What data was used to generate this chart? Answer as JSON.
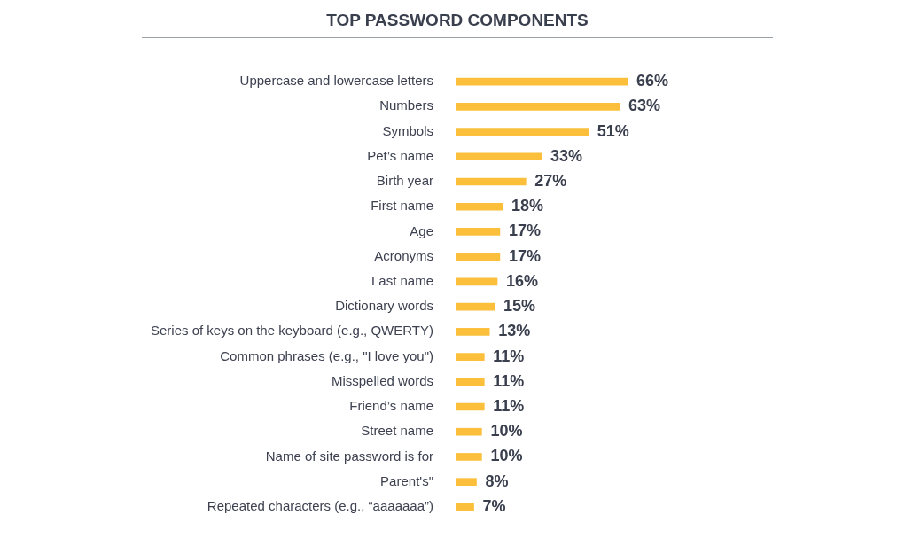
{
  "chart_data": {
    "type": "bar",
    "orientation": "horizontal",
    "title": "TOP PASSWORD COMPONENTS",
    "categories": [
      "Uppercase and lowercase letters",
      "Numbers",
      "Symbols",
      "Pet’s name",
      "Birth year",
      "First name",
      "Age",
      "Acronyms",
      "Last name",
      "Dictionary words",
      "Series of keys on the keyboard (e.g., QWERTY)",
      "Common phrases (e.g., \"I love you\")",
      "Misspelled words",
      "Friend’s name",
      "Street name",
      "Name of site password is for",
      "Parent's\"",
      "Repeated characters (e.g., “aaaaaaa”)"
    ],
    "values": [
      66,
      63,
      51,
      33,
      27,
      18,
      17,
      17,
      16,
      15,
      13,
      11,
      11,
      11,
      10,
      10,
      8,
      7
    ],
    "value_labels": [
      "66%",
      "63%",
      "51%",
      "33%",
      "27%",
      "18%",
      "17%",
      "17%",
      "16%",
      "15%",
      "13%",
      "11%",
      "11%",
      "11%",
      "10%",
      "10%",
      "8%",
      "7%"
    ],
    "color": "#fbbf3c"
  }
}
